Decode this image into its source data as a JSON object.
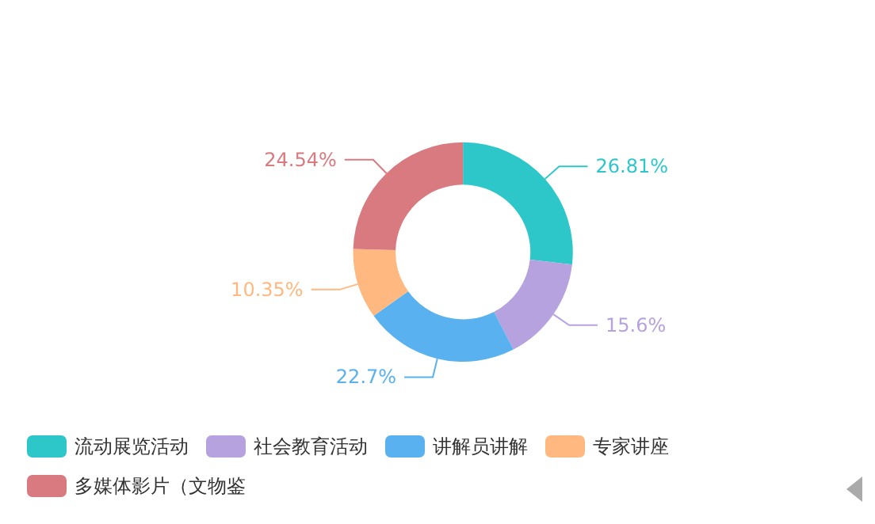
{
  "chart_data": {
    "type": "donut",
    "categories": [
      "流动展览活动",
      "社会教育活动",
      "讲解员讲解",
      "专家讲座",
      "多媒体影片（文物鉴"
    ],
    "values": [
      26.81,
      15.6,
      22.7,
      10.35,
      24.54
    ],
    "value_labels": [
      "26.81%",
      "15.6%",
      "22.7%",
      "10.35%",
      "24.54%"
    ],
    "colors": [
      "#2ec7c9",
      "#b6a2de",
      "#5ab1ef",
      "#ffb980",
      "#d87a80"
    ],
    "legend": "bottom"
  }
}
